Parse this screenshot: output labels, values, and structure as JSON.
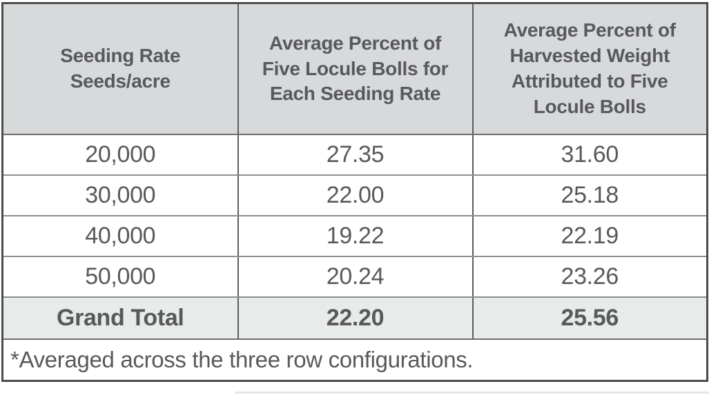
{
  "colors": {
    "header_bg": "#d8d9da",
    "total_row_bg": "#e9eaea",
    "row_bg": "#ffffff",
    "text": "#58595b",
    "border_outer": "#4b4c4e",
    "border_horizontal": "#8b8d8f",
    "border_vertical": "#5b5c5e"
  },
  "chart_data": {
    "type": "table",
    "columns": [
      "Seeding Rate\nSeeds/acre",
      "Average Percent of\nFive Locule Bolls for\nEach Seeding Rate",
      "Average Percent of\nHarvested Weight\nAttributed to Five\nLocule Bolls"
    ],
    "rows": [
      [
        "20,000",
        "27.35",
        "31.60"
      ],
      [
        "30,000",
        "22.00",
        "25.18"
      ],
      [
        "40,000",
        "19.22",
        "22.19"
      ],
      [
        "50,000",
        "20.24",
        "23.26"
      ]
    ],
    "total_row": [
      "Grand Total",
      "22.20",
      "25.56"
    ],
    "footnote": "*Averaged across the three row configurations."
  }
}
